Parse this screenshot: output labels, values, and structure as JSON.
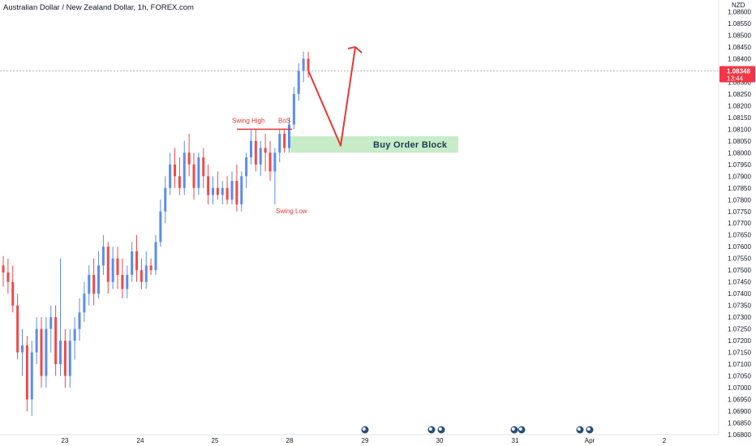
{
  "header": {
    "symbol_title": "Australian Dollar / New Zealand Dollar, 1h, FOREX.com"
  },
  "price_axis": {
    "currency": "NZD",
    "current_price_label": "1.08348",
    "countdown_label": "13:44",
    "ticks": [
      "1.08600",
      "1.08550",
      "1.08500",
      "1.08450",
      "1.08400",
      "1.08350",
      "1.08300",
      "1.08250",
      "1.08200",
      "1.08150",
      "1.08100",
      "1.08050",
      "1.08000",
      "1.07950",
      "1.07900",
      "1.07850",
      "1.07800",
      "1.07750",
      "1.07700",
      "1.07650",
      "1.07600",
      "1.07550",
      "1.07500",
      "1.07450",
      "1.07400",
      "1.07350",
      "1.07300",
      "1.07250",
      "1.07200",
      "1.07150",
      "1.07100",
      "1.07050",
      "1.07000",
      "1.06950",
      "1.06900",
      "1.06850",
      "1.06800"
    ]
  },
  "time_axis": {
    "ticks": [
      "23",
      "24",
      "25",
      "28",
      "29",
      "30",
      "31",
      "Apr",
      "2"
    ]
  },
  "annotations": {
    "swing_high": "Swing High",
    "bos": "BoS",
    "swing_low": "Swing Low",
    "order_block": "Buy Order Block"
  },
  "colors": {
    "up": "#5b8def",
    "down": "#ef4a4a",
    "annotation": "#e53935",
    "order_block_fill": "#c8ebc8",
    "order_block_text": "#1b3a57",
    "price_label_bg": "#f23645",
    "axis_text": "#131722"
  },
  "chart_data": {
    "type": "candlestick",
    "title": "Australian Dollar / New Zealand Dollar, 1h, FOREX.com",
    "ylim": [
      1.068,
      1.0865
    ],
    "y_unit": "NZD",
    "grid": false,
    "current_price": 1.08348,
    "candles": [
      [
        1.0752,
        1.0756,
        1.0743,
        1.0749
      ],
      [
        1.0749,
        1.0755,
        1.074,
        1.0745
      ],
      [
        1.0745,
        1.0752,
        1.0732,
        1.0735
      ],
      [
        1.0735,
        1.074,
        1.0712,
        1.0715
      ],
      [
        1.0715,
        1.0725,
        1.0705,
        1.0718
      ],
      [
        1.0718,
        1.0722,
        1.069,
        1.0695
      ],
      [
        1.0695,
        1.072,
        1.0688,
        1.0715
      ],
      [
        1.0715,
        1.073,
        1.071,
        1.0725
      ],
      [
        1.0725,
        1.073,
        1.07,
        1.0705
      ],
      [
        1.0705,
        1.073,
        1.07,
        1.0725
      ],
      [
        1.0725,
        1.0735,
        1.0715,
        1.073
      ],
      [
        1.073,
        1.0735,
        1.0705,
        1.071
      ],
      [
        1.071,
        1.0755,
        1.0705,
        1.072
      ],
      [
        1.072,
        1.0725,
        1.07,
        1.0705
      ],
      [
        1.0705,
        1.0725,
        1.07,
        1.072
      ],
      [
        1.072,
        1.073,
        1.0712,
        1.0725
      ],
      [
        1.0725,
        1.0738,
        1.072,
        1.0732
      ],
      [
        1.0732,
        1.0745,
        1.0728,
        1.074
      ],
      [
        1.074,
        1.0752,
        1.0735,
        1.0748
      ],
      [
        1.0748,
        1.0755,
        1.0735,
        1.074
      ],
      [
        1.074,
        1.0758,
        1.0738,
        1.0752
      ],
      [
        1.0752,
        1.0765,
        1.0748,
        1.076
      ],
      [
        1.076,
        1.0762,
        1.074,
        1.0745
      ],
      [
        1.0745,
        1.076,
        1.0742,
        1.0755
      ],
      [
        1.0755,
        1.076,
        1.0742,
        1.0748
      ],
      [
        1.0748,
        1.0755,
        1.0738,
        1.0742
      ],
      [
        1.0742,
        1.0752,
        1.0738,
        1.0748
      ],
      [
        1.0748,
        1.0762,
        1.0745,
        1.0758
      ],
      [
        1.0758,
        1.0765,
        1.0745,
        1.075
      ],
      [
        1.075,
        1.0755,
        1.0742,
        1.0745
      ],
      [
        1.0745,
        1.0758,
        1.0742,
        1.0752
      ],
      [
        1.0752,
        1.0755,
        1.0748,
        1.075
      ],
      [
        1.075,
        1.0765,
        1.0748,
        1.0762
      ],
      [
        1.0762,
        1.078,
        1.076,
        1.0775
      ],
      [
        1.0775,
        1.079,
        1.077,
        1.0785
      ],
      [
        1.0785,
        1.08,
        1.0782,
        1.0795
      ],
      [
        1.0795,
        1.0802,
        1.0785,
        1.079
      ],
      [
        1.079,
        1.0798,
        1.0782,
        1.0785
      ],
      [
        1.0785,
        1.0805,
        1.0782,
        1.08
      ],
      [
        1.08,
        1.0808,
        1.079,
        1.0795
      ],
      [
        1.0795,
        1.08,
        1.078,
        1.0785
      ],
      [
        1.0785,
        1.08,
        1.0782,
        1.0798
      ],
      [
        1.0798,
        1.0802,
        1.0785,
        1.079
      ],
      [
        1.079,
        1.0795,
        1.0778,
        1.0782
      ],
      [
        1.0782,
        1.079,
        1.0778,
        1.0785
      ],
      [
        1.0785,
        1.0792,
        1.078,
        1.0782
      ],
      [
        1.0782,
        1.0788,
        1.0778,
        1.0785
      ],
      [
        1.0785,
        1.079,
        1.0778,
        1.078
      ],
      [
        1.078,
        1.0792,
        1.0778,
        1.0788
      ],
      [
        1.0788,
        1.0795,
        1.0775,
        1.0778
      ],
      [
        1.0778,
        1.0792,
        1.0775,
        1.079
      ],
      [
        1.079,
        1.08,
        1.0785,
        1.0798
      ],
      [
        1.0798,
        1.081,
        1.0795,
        1.0805
      ],
      [
        1.0805,
        1.081,
        1.0792,
        1.0795
      ],
      [
        1.0795,
        1.0805,
        1.079,
        1.0802
      ],
      [
        1.0802,
        1.0808,
        1.0792,
        1.08
      ],
      [
        1.08,
        1.0805,
        1.0788,
        1.0792
      ],
      [
        1.0792,
        1.0802,
        1.0778,
        1.08
      ],
      [
        1.08,
        1.081,
        1.0796,
        1.0808
      ],
      [
        1.0808,
        1.081,
        1.08,
        1.0802
      ],
      [
        1.0802,
        1.0815,
        1.08,
        1.0812
      ],
      [
        1.0812,
        1.0828,
        1.081,
        1.0825
      ],
      [
        1.0825,
        1.0838,
        1.0822,
        1.0835
      ],
      [
        1.0835,
        1.0843,
        1.083,
        1.084
      ],
      [
        1.084,
        1.0843,
        1.0832,
        1.0835
      ]
    ]
  }
}
